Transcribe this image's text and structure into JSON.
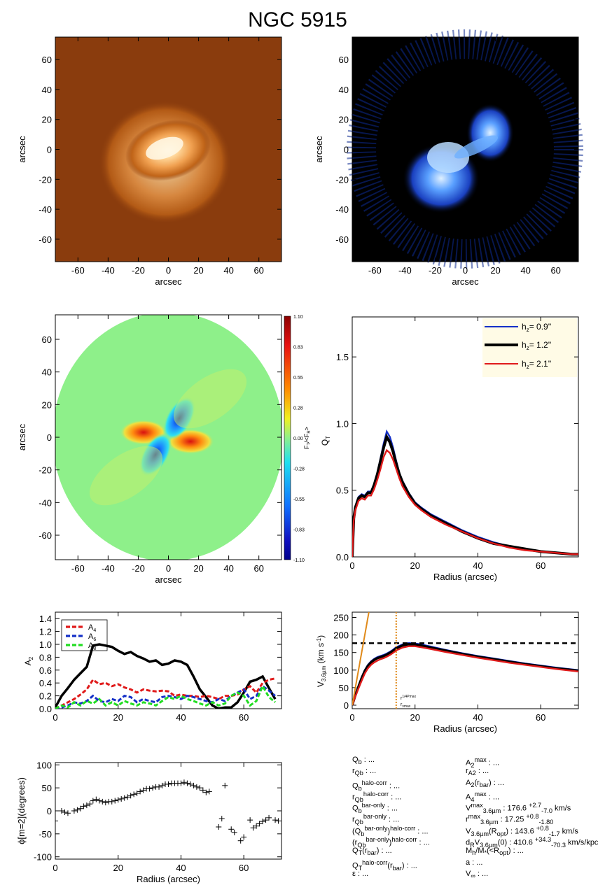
{
  "title": "NGC 5915",
  "colors": {
    "stellar_bg": "#8a3c0d",
    "gas_bg": "#000000",
    "blue": "#1530c8",
    "black": "#000000",
    "red": "#e01a1a",
    "green": "#22dd22",
    "orange": "#e08a1a",
    "legend_bg": "#fffbe6"
  },
  "chart_data": [
    {
      "id": "stellar-image",
      "type": "heatmap",
      "xlabel": "arcsec",
      "ylabel": "arcsec",
      "xlim": [
        -75,
        75
      ],
      "ylim": [
        -75,
        75
      ],
      "xticks": [
        -60,
        -40,
        -20,
        0,
        20,
        40,
        60
      ],
      "yticks": [
        -60,
        -40,
        -20,
        0,
        20,
        40,
        60
      ]
    },
    {
      "id": "gas-image",
      "type": "heatmap",
      "xlabel": "arcsec",
      "ylabel": "arcsec",
      "xlim": [
        -75,
        75
      ],
      "ylim": [
        -75,
        75
      ],
      "xticks": [
        -60,
        -40,
        -20,
        0,
        20,
        40,
        60
      ],
      "yticks": [
        -60,
        -40,
        -20,
        0,
        20,
        40,
        60
      ]
    },
    {
      "id": "force-map",
      "type": "heatmap",
      "xlabel": "arcsec",
      "ylabel": "arcsec",
      "xlim": [
        -75,
        75
      ],
      "ylim": [
        -75,
        75
      ],
      "xticks": [
        -60,
        -40,
        -20,
        0,
        20,
        40,
        60
      ],
      "yticks": [
        -60,
        -40,
        -20,
        0,
        20,
        40,
        60
      ],
      "colorbar_label": "F_T/<F_R>",
      "colorbar_ticks": [
        "1.10",
        "0.83",
        "0.55",
        "0.28",
        "0.00",
        "-0.28",
        "-0.55",
        "-0.83",
        "-1.10"
      ]
    },
    {
      "id": "qt-profile",
      "type": "line",
      "xlabel": "Radius (arcsec)",
      "ylabel": "Q_T",
      "xlim": [
        0,
        72
      ],
      "ylim": [
        0,
        1.8
      ],
      "xticks": [
        0,
        20,
        40,
        60
      ],
      "yticks": [
        "0.0",
        "0.5",
        "1.0",
        "1.5"
      ],
      "legend_position": "top-right",
      "x": [
        0,
        0.5,
        1,
        2,
        3,
        4,
        5,
        6,
        7,
        8,
        9,
        10,
        11,
        12,
        13,
        14,
        15,
        16,
        18,
        20,
        22,
        25,
        30,
        35,
        40,
        45,
        50,
        55,
        60,
        65,
        70,
        72
      ],
      "series": [
        {
          "name": "h_z= 0.9''",
          "color": "blue",
          "values": [
            0,
            0.3,
            0.38,
            0.45,
            0.47,
            0.46,
            0.49,
            0.49,
            0.55,
            0.63,
            0.74,
            0.85,
            0.94,
            0.9,
            0.82,
            0.72,
            0.63,
            0.57,
            0.48,
            0.41,
            0.37,
            0.32,
            0.26,
            0.2,
            0.15,
            0.11,
            0.08,
            0.06,
            0.04,
            0.03,
            0.02,
            0.02
          ]
        },
        {
          "name": "h_z= 1.2''",
          "color": "black",
          "values": [
            0,
            0.29,
            0.37,
            0.44,
            0.46,
            0.45,
            0.48,
            0.48,
            0.54,
            0.62,
            0.72,
            0.82,
            0.9,
            0.86,
            0.79,
            0.7,
            0.62,
            0.56,
            0.47,
            0.4,
            0.36,
            0.31,
            0.25,
            0.19,
            0.14,
            0.1,
            0.08,
            0.06,
            0.04,
            0.03,
            0.02,
            0.02
          ]
        },
        {
          "name": "h_z= 2.1''",
          "color": "red",
          "values": [
            0,
            0.27,
            0.35,
            0.42,
            0.44,
            0.43,
            0.46,
            0.46,
            0.51,
            0.58,
            0.66,
            0.75,
            0.8,
            0.78,
            0.73,
            0.66,
            0.59,
            0.53,
            0.45,
            0.39,
            0.35,
            0.3,
            0.24,
            0.19,
            0.14,
            0.1,
            0.07,
            0.05,
            0.04,
            0.03,
            0.02,
            0.02
          ]
        }
      ]
    },
    {
      "id": "fourier-amplitudes",
      "type": "line",
      "xlabel": "",
      "ylabel": "A_2",
      "xlim": [
        0,
        72
      ],
      "ylim": [
        0,
        1.5
      ],
      "xticks": [
        0,
        20,
        40,
        60
      ],
      "yticks": [
        "0.0",
        "0.2",
        "0.4",
        "0.6",
        "0.8",
        "1.0",
        "1.2",
        "1.4"
      ],
      "legend_position": "top-left",
      "series": [
        {
          "name": "A_2",
          "color": "black",
          "style": "solid",
          "x": [
            0,
            2,
            4,
            6,
            8,
            10,
            12,
            14,
            16,
            18,
            20,
            22,
            24,
            26,
            28,
            30,
            32,
            34,
            36,
            38,
            40,
            42,
            44,
            46,
            48,
            50,
            52,
            54,
            56,
            58,
            60,
            62,
            64,
            66,
            68,
            70
          ],
          "values": [
            0.02,
            0.2,
            0.32,
            0.45,
            0.55,
            0.65,
            0.98,
            1.0,
            0.98,
            0.96,
            0.9,
            0.85,
            0.88,
            0.82,
            0.78,
            0.73,
            0.75,
            0.68,
            0.7,
            0.75,
            0.73,
            0.68,
            0.5,
            0.3,
            0.18,
            0.05,
            0.0,
            0.02,
            0.02,
            0.1,
            0.25,
            0.42,
            0.45,
            0.5,
            0.32,
            0.15
          ]
        },
        {
          "name": "A_4",
          "color": "red",
          "style": "dashed",
          "x": [
            0,
            2,
            4,
            6,
            8,
            10,
            12,
            14,
            16,
            18,
            20,
            22,
            24,
            26,
            28,
            30,
            32,
            34,
            36,
            38,
            40,
            42,
            44,
            46,
            48,
            50,
            52,
            54,
            56,
            58,
            60,
            62,
            64,
            66,
            68,
            70
          ],
          "values": [
            0.0,
            0.05,
            0.1,
            0.15,
            0.22,
            0.3,
            0.45,
            0.38,
            0.4,
            0.35,
            0.38,
            0.33,
            0.3,
            0.25,
            0.3,
            0.28,
            0.27,
            0.28,
            0.27,
            0.2,
            0.22,
            0.2,
            0.2,
            0.18,
            0.2,
            0.18,
            0.15,
            0.2,
            0.2,
            0.22,
            0.3,
            0.35,
            0.25,
            0.4,
            0.45,
            0.47
          ]
        },
        {
          "name": "A_6",
          "color": "blue",
          "style": "dashed",
          "x": [
            0,
            2,
            4,
            6,
            8,
            10,
            12,
            14,
            16,
            18,
            20,
            22,
            24,
            26,
            28,
            30,
            32,
            34,
            36,
            38,
            40,
            42,
            44,
            46,
            48,
            50,
            52,
            54,
            56,
            58,
            60,
            62,
            64,
            66,
            68,
            70
          ],
          "values": [
            0.0,
            0.02,
            0.05,
            0.1,
            0.08,
            0.12,
            0.2,
            0.12,
            0.1,
            0.15,
            0.12,
            0.2,
            0.18,
            0.1,
            0.15,
            0.12,
            0.1,
            0.18,
            0.2,
            0.18,
            0.15,
            0.2,
            0.18,
            0.15,
            0.12,
            0.1,
            0.15,
            0.12,
            0.2,
            0.25,
            0.3,
            0.15,
            0.2,
            0.35,
            0.28,
            0.2
          ]
        },
        {
          "name": "A_8",
          "color": "green",
          "style": "dashed",
          "x": [
            0,
            2,
            4,
            6,
            8,
            10,
            12,
            14,
            16,
            18,
            20,
            22,
            24,
            26,
            28,
            30,
            32,
            34,
            36,
            38,
            40,
            42,
            44,
            46,
            48,
            50,
            52,
            54,
            56,
            58,
            60,
            62,
            64,
            66,
            68,
            70
          ],
          "values": [
            0.0,
            0.05,
            0.02,
            0.1,
            0.05,
            0.12,
            0.08,
            0.15,
            0.05,
            0.1,
            0.05,
            0.12,
            0.08,
            0.05,
            0.1,
            0.08,
            0.05,
            0.12,
            0.18,
            0.15,
            0.2,
            0.15,
            0.12,
            0.08,
            0.05,
            0.1,
            0.05,
            0.08,
            0.2,
            0.25,
            0.2,
            0.05,
            0.12,
            0.35,
            0.18,
            0.1
          ]
        }
      ]
    },
    {
      "id": "rotation-curve",
      "type": "line",
      "xlabel": "Radius (arcsec)",
      "ylabel": "V_3.6µm (km s⁻¹)",
      "xlim": [
        0,
        72
      ],
      "ylim": [
        -10,
        265
      ],
      "xticks": [
        0,
        20,
        40,
        60
      ],
      "yticks": [
        0,
        50,
        100,
        150,
        200,
        250
      ],
      "x": [
        0,
        1,
        2,
        3,
        4,
        5,
        6,
        7,
        8,
        9,
        10,
        11,
        12,
        13,
        14,
        16,
        18,
        20,
        22,
        25,
        30,
        35,
        40,
        45,
        50,
        55,
        60,
        65,
        70,
        72
      ],
      "series": [
        {
          "color": "blue",
          "values": [
            0,
            30,
            55,
            80,
            100,
            115,
            125,
            132,
            137,
            140,
            143,
            147,
            152,
            158,
            165,
            173,
            177,
            176,
            173,
            167,
            157,
            148,
            140,
            133,
            126,
            119,
            113,
            107,
            102,
            100
          ]
        },
        {
          "color": "black",
          "values": [
            0,
            28,
            53,
            77,
            97,
            112,
            122,
            129,
            134,
            137,
            140,
            144,
            149,
            155,
            162,
            170,
            174,
            173,
            170,
            164,
            155,
            146,
            138,
            131,
            124,
            117,
            111,
            105,
            100,
            98
          ]
        },
        {
          "color": "red",
          "values": [
            0,
            25,
            48,
            70,
            90,
            105,
            115,
            122,
            127,
            131,
            134,
            138,
            143,
            149,
            156,
            164,
            168,
            168,
            165,
            160,
            151,
            143,
            135,
            128,
            121,
            115,
            109,
            103,
            98,
            96
          ]
        }
      ],
      "vmax_line": 176.6,
      "rmax_line": 14,
      "rmax_label": "r^{1/4Pmax}_{Vmax}",
      "slope_line": {
        "x": [
          0,
          5.3
        ],
        "y": [
          0,
          265
        ]
      }
    },
    {
      "id": "phase-angle",
      "type": "scatter",
      "xlabel": "Radius (arcsec)",
      "ylabel": "ϕ[m=2](degrees)",
      "xlim": [
        0,
        72
      ],
      "ylim": [
        -105,
        105
      ],
      "xticks": [
        0,
        20,
        40,
        60
      ],
      "yticks": [
        -100,
        -50,
        0,
        50,
        100
      ],
      "x": [
        0,
        2,
        3,
        4,
        6,
        7,
        8,
        9,
        10,
        11,
        12,
        13,
        14,
        15,
        16,
        17,
        18,
        19,
        20,
        21,
        22,
        23,
        24,
        25,
        26,
        27,
        28,
        29,
        30,
        31,
        32,
        33,
        34,
        35,
        36,
        37,
        38,
        39,
        40,
        41,
        42,
        43,
        44,
        45,
        46,
        47,
        48,
        49,
        52,
        53,
        54,
        56,
        57,
        59,
        60,
        62,
        63,
        64,
        65,
        66,
        67,
        68,
        70,
        71
      ],
      "y": [
        -22,
        0,
        -3,
        -5,
        0,
        2,
        5,
        10,
        12,
        15,
        22,
        25,
        22,
        20,
        18,
        20,
        20,
        22,
        24,
        26,
        28,
        30,
        33,
        36,
        38,
        42,
        45,
        48,
        48,
        50,
        52,
        52,
        55,
        58,
        58,
        60,
        60,
        60,
        60,
        62,
        60,
        58,
        55,
        52,
        50,
        45,
        40,
        42,
        -35,
        -17,
        55,
        -40,
        -47,
        -65,
        -57,
        -20,
        -37,
        -33,
        -28,
        -23,
        -20,
        -15,
        -20,
        -22
      ]
    }
  ],
  "params_left": [
    "Q_b : ...",
    "r_Qb : ...",
    "Q_b^{halo-corr} : ...",
    "r_Qb^{halo-corr} : ...",
    "Q_b^{bar-only} : ...",
    "r_Qb^{bar-only} : ...",
    "(Q_b^{bar-only})^{halo-corr} : ...",
    "(r_Qb^{bar-only})^{halo-corr} : ...",
    "Q_T(r_bar) : ...",
    "Q_T^{halo-corr}(r_bar) : ...",
    "ε : ..."
  ],
  "params_right": [
    "A_2^{max} : ...",
    "r_A2 : ...",
    "A_2(r_bar) : ...",
    "A_4^{max} : ...",
    "V^{max}_{3.6µm} : 176.6 +2.7/-7.0 km/s",
    "r^{max}_{3.6µm} : 17.25 +0.8/-1.80",
    "V_{3.6µm}(R_opt) : 143.6 +0.8/-1.7 km/s",
    "d_R V_{3.6µm}(0) : 410.6 +34.3/-70.3 km/s/kpc",
    "M_h/M_*(<R_opt) : ...",
    "a : ...",
    "V_∞ : ..."
  ]
}
